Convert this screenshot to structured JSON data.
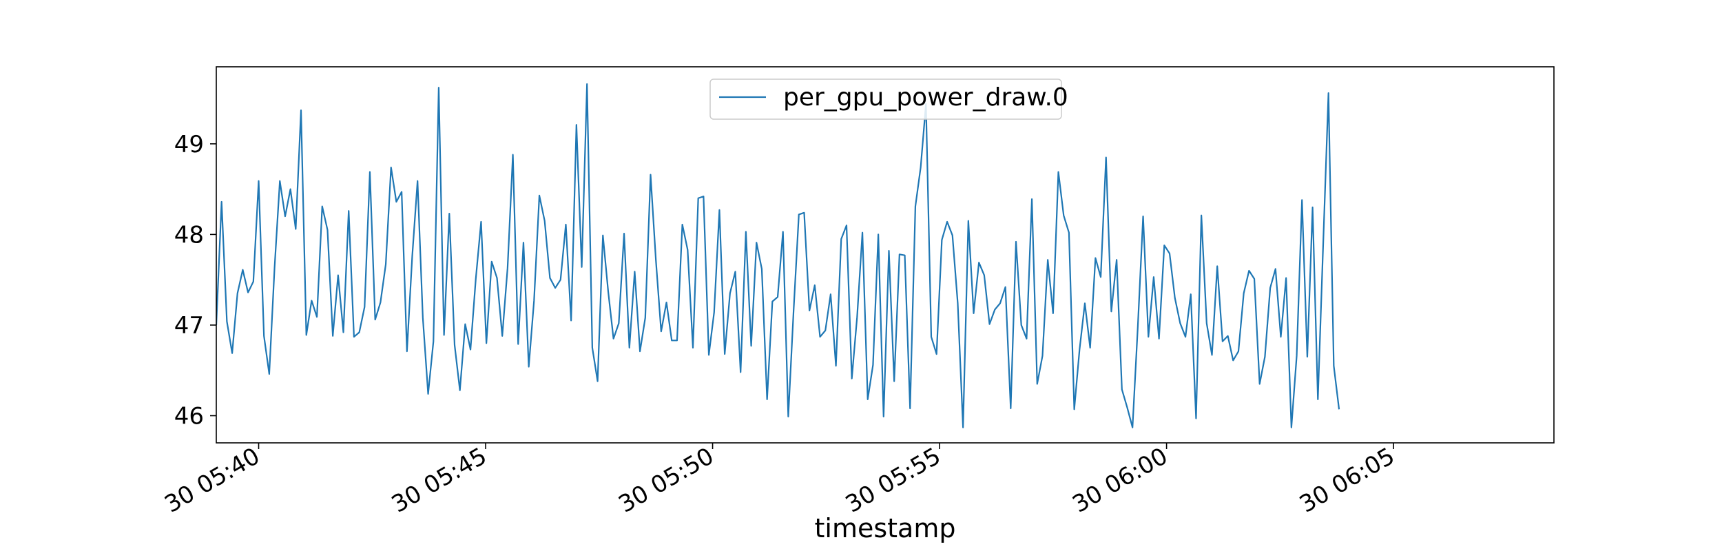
{
  "chart_data": {
    "type": "line",
    "xlabel": "timestamp",
    "ylabel": "",
    "ylim": [
      45.7,
      49.85
    ],
    "xlim": [
      "30 05:39:04",
      "30 06:08:32"
    ],
    "grid": false,
    "legend": "upper center",
    "x_ticks": [
      "30 05:40",
      "30 05:45",
      "30 05:50",
      "30 05:55",
      "30 06:00",
      "30 06:05"
    ],
    "y_ticks": [
      "46",
      "47",
      "48",
      "49"
    ],
    "x_start": "30 05:39:04",
    "x_step_seconds": 7,
    "series": [
      {
        "name": "per_gpu_power_draw.0",
        "color": "#1f77b4",
        "values": [
          47.0,
          48.36,
          47.04,
          46.69,
          47.35,
          47.61,
          47.36,
          47.48,
          48.59,
          46.88,
          46.46,
          47.63,
          48.59,
          48.2,
          48.5,
          48.06,
          49.37,
          46.89,
          47.27,
          47.09,
          48.31,
          48.05,
          46.88,
          47.55,
          46.92,
          48.26,
          46.87,
          46.92,
          47.2,
          48.69,
          47.06,
          47.25,
          47.67,
          48.74,
          48.36,
          48.47,
          46.71,
          47.76,
          48.59,
          47.08,
          46.24,
          46.82,
          49.62,
          46.89,
          48.23,
          46.78,
          46.28,
          47.01,
          46.73,
          47.51,
          48.14,
          46.8,
          47.7,
          47.52,
          46.88,
          47.63,
          48.88,
          46.79,
          47.91,
          46.54,
          47.27,
          48.43,
          48.15,
          47.52,
          47.41,
          47.5,
          48.11,
          47.05,
          49.21,
          47.64,
          49.66,
          46.75,
          46.38,
          47.99,
          47.37,
          46.85,
          47.02,
          48.01,
          46.75,
          47.59,
          46.71,
          47.08,
          48.66,
          47.72,
          46.93,
          47.25,
          46.83,
          46.83,
          48.11,
          47.83,
          46.75,
          48.4,
          48.42,
          46.67,
          47.14,
          48.27,
          46.68,
          47.35,
          47.59,
          46.48,
          48.03,
          46.77,
          47.91,
          47.62,
          46.18,
          47.26,
          47.31,
          48.03,
          45.99,
          47.15,
          48.22,
          48.24,
          47.16,
          47.44,
          46.87,
          46.94,
          47.34,
          46.55,
          47.95,
          48.1,
          46.41,
          47.09,
          48.02,
          46.18,
          46.56,
          48.0,
          45.99,
          47.82,
          46.38,
          47.78,
          47.77,
          46.08,
          48.31,
          48.74,
          49.44,
          46.87,
          46.68,
          47.94,
          48.14,
          47.99,
          47.24,
          45.87,
          48.15,
          47.13,
          47.69,
          47.55,
          47.01,
          47.17,
          47.24,
          47.42,
          46.08,
          47.92,
          47.0,
          46.85,
          48.39,
          46.35,
          46.66,
          47.72,
          47.13,
          48.69,
          48.21,
          48.02,
          46.07,
          46.73,
          47.24,
          46.75,
          47.74,
          47.53,
          48.85,
          47.15,
          47.72,
          46.29,
          46.09,
          45.87,
          46.98,
          48.2,
          46.87,
          47.53,
          46.85,
          47.88,
          47.79,
          47.3,
          47.02,
          46.87,
          47.34,
          45.97,
          48.21,
          47.02,
          46.67,
          47.65,
          46.82,
          46.88,
          46.61,
          46.71,
          47.35,
          47.6,
          47.51,
          46.35,
          46.65,
          47.41,
          47.62,
          46.87,
          47.52,
          45.87,
          46.66,
          48.38,
          46.65,
          48.3,
          46.18,
          47.89,
          49.56,
          46.55,
          46.07
        ]
      }
    ]
  }
}
